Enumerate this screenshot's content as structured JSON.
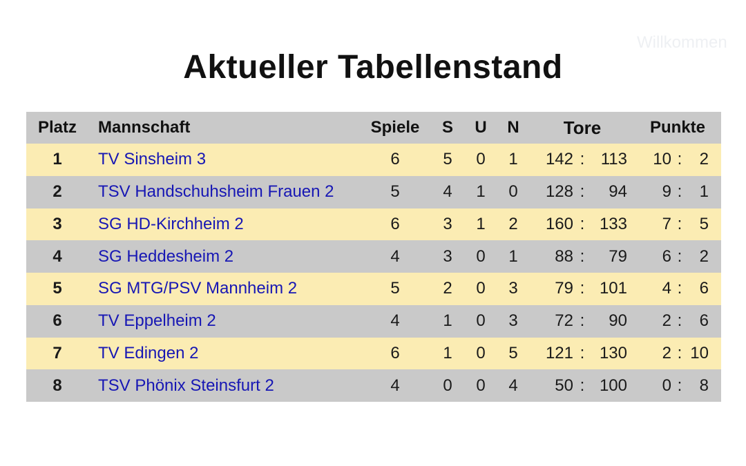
{
  "watermark": "Willkommen",
  "title": "Aktueller Tabellenstand",
  "columns": {
    "platz": "Platz",
    "mannschaft": "Mannschaft",
    "spiele": "Spiele",
    "s": "S",
    "u": "U",
    "n": "N",
    "tore": "Tore",
    "punkte": "Punkte"
  },
  "separator": ":",
  "rows": [
    {
      "platz": "1",
      "team": "TV Sinsheim 3",
      "spiele": "6",
      "s": "5",
      "u": "0",
      "n": "1",
      "tore_plus": "142",
      "tore_minus": "113",
      "punkte_plus": "10",
      "punkte_minus": "2"
    },
    {
      "platz": "2",
      "team": "TSV Handschuhsheim Frauen 2",
      "spiele": "5",
      "s": "4",
      "u": "1",
      "n": "0",
      "tore_plus": "128",
      "tore_minus": "94",
      "punkte_plus": "9",
      "punkte_minus": "1"
    },
    {
      "platz": "3",
      "team": "SG HD-Kirchheim 2",
      "spiele": "6",
      "s": "3",
      "u": "1",
      "n": "2",
      "tore_plus": "160",
      "tore_minus": "133",
      "punkte_plus": "7",
      "punkte_minus": "5"
    },
    {
      "platz": "4",
      "team": "SG Heddesheim 2",
      "spiele": "4",
      "s": "3",
      "u": "0",
      "n": "1",
      "tore_plus": "88",
      "tore_minus": "79",
      "punkte_plus": "6",
      "punkte_minus": "2"
    },
    {
      "platz": "5",
      "team": "SG MTG/PSV Mannheim 2",
      "spiele": "5",
      "s": "2",
      "u": "0",
      "n": "3",
      "tore_plus": "79",
      "tore_minus": "101",
      "punkte_plus": "4",
      "punkte_minus": "6"
    },
    {
      "platz": "6",
      "team": "TV Eppelheim 2",
      "spiele": "4",
      "s": "1",
      "u": "0",
      "n": "3",
      "tore_plus": "72",
      "tore_minus": "90",
      "punkte_plus": "2",
      "punkte_minus": "6"
    },
    {
      "platz": "7",
      "team": "TV Edingen 2",
      "spiele": "6",
      "s": "1",
      "u": "0",
      "n": "5",
      "tore_plus": "121",
      "tore_minus": "130",
      "punkte_plus": "2",
      "punkte_minus": "10"
    },
    {
      "platz": "8",
      "team": "TSV Phönix Steinsfurt 2",
      "spiele": "4",
      "s": "0",
      "u": "0",
      "n": "4",
      "tore_plus": "50",
      "tore_minus": "100",
      "punkte_plus": "0",
      "punkte_minus": "8"
    }
  ],
  "colors": {
    "header_bg": "#c9c9c9",
    "odd_row_bg": "#fbecb3",
    "even_row_bg": "#c9c9c9",
    "team_link": "#1717b4"
  }
}
